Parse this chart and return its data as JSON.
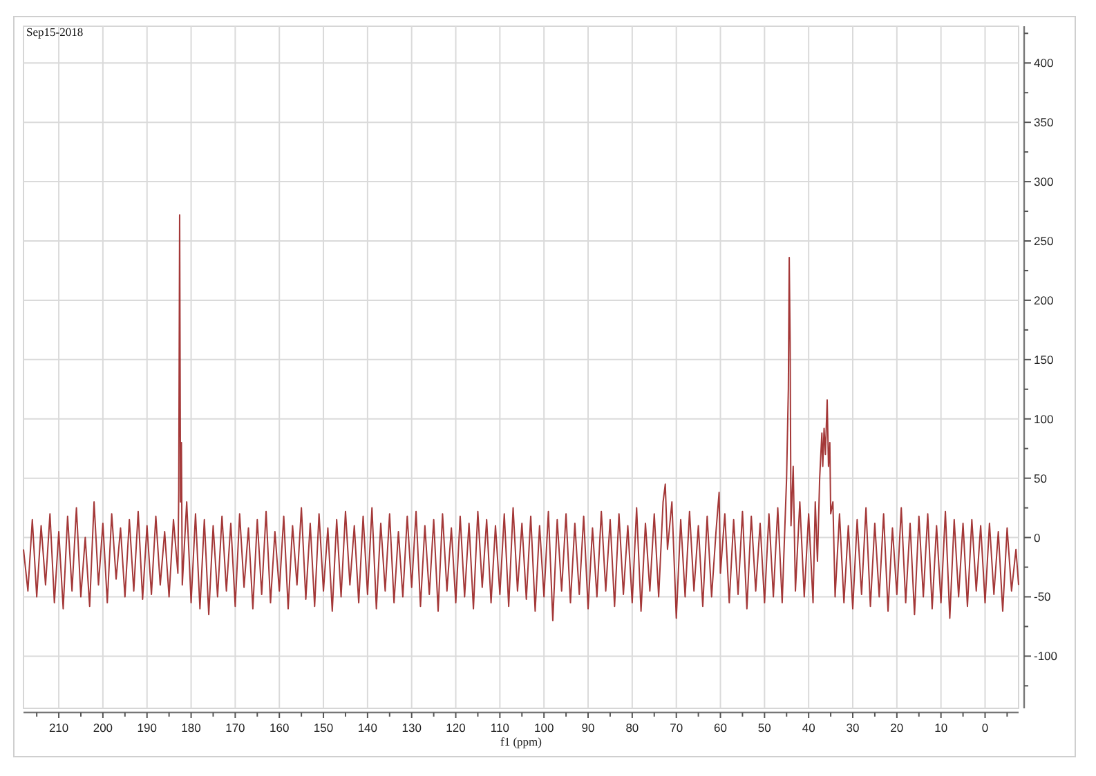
{
  "chart_data": {
    "type": "line",
    "title": "Sep15-2018",
    "xlabel": "f1 (ppm)",
    "color": "#9a2222",
    "grid": true,
    "xlim": [
      218,
      -7.6
    ],
    "ylim": [
      -144,
      431
    ],
    "xticks": [
      {
        "value": 215,
        "label": null
      },
      210,
      {
        "value": 205,
        "label": null
      },
      200,
      {
        "value": 195,
        "label": null
      },
      190,
      {
        "value": 185,
        "label": null
      },
      180,
      {
        "value": 175,
        "label": null
      },
      170,
      {
        "value": 165,
        "label": null
      },
      160,
      {
        "value": 155,
        "label": null
      },
      150,
      {
        "value": 145,
        "label": null
      },
      140,
      {
        "value": 135,
        "label": null
      },
      130,
      {
        "value": 125,
        "label": null
      },
      120,
      {
        "value": 115,
        "label": null
      },
      110,
      {
        "value": 105,
        "label": null
      },
      100,
      {
        "value": 95,
        "label": null
      },
      90,
      {
        "value": 85,
        "label": null
      },
      80,
      {
        "value": 75,
        "label": null
      },
      70,
      {
        "value": 65,
        "label": null
      },
      60,
      {
        "value": 55,
        "label": null
      },
      50,
      {
        "value": 45,
        "label": null
      },
      40,
      {
        "value": 35,
        "label": null
      },
      30,
      {
        "value": 25,
        "label": null
      },
      20,
      {
        "value": 15,
        "label": null
      },
      10,
      {
        "value": 5,
        "label": null
      },
      0,
      {
        "value": -5,
        "label": null
      }
    ],
    "yticks": [
      {
        "value": -125,
        "label": null
      },
      -100,
      {
        "value": -75,
        "label": null
      },
      -50,
      {
        "value": -25,
        "label": null
      },
      0,
      {
        "value": 25,
        "label": null
      },
      50,
      {
        "value": 75,
        "label": null
      },
      100,
      {
        "value": 125,
        "label": null
      },
      150,
      {
        "value": 175,
        "label": null
      },
      200,
      {
        "value": 225,
        "label": null
      },
      250,
      {
        "value": 275,
        "label": null
      },
      300,
      {
        "value": 325,
        "label": null
      },
      350,
      {
        "value": 375,
        "label": null
      },
      400,
      {
        "value": 425,
        "label": null
      }
    ],
    "x": [
      218,
      217,
      216,
      215,
      214,
      213,
      212,
      211,
      210,
      209,
      208,
      207,
      206,
      205,
      204,
      203,
      202,
      201,
      200,
      199,
      198,
      197,
      196,
      195,
      194,
      193,
      192,
      191,
      190,
      189,
      188,
      187,
      186,
      185,
      184,
      183,
      182.8,
      182.6,
      182.4,
      182.2,
      182,
      181,
      180,
      179,
      178,
      177,
      176,
      175,
      174,
      173,
      172,
      171,
      170,
      169,
      168,
      167,
      166,
      165,
      164,
      163,
      162,
      161,
      160,
      159,
      158,
      157,
      156,
      155,
      154,
      153,
      152,
      151,
      150,
      149,
      148,
      147,
      146,
      145,
      144,
      143,
      142,
      141,
      140,
      139,
      138,
      137,
      136,
      135,
      134,
      133,
      132,
      131,
      130,
      129,
      128,
      127,
      126,
      125,
      124,
      123,
      122,
      121,
      120,
      119,
      118,
      117,
      116,
      115,
      114,
      113,
      112,
      111,
      110,
      109,
      108,
      107,
      106,
      105,
      104,
      103,
      102,
      101,
      100,
      99,
      98,
      97,
      96,
      95,
      94,
      93,
      92,
      91,
      90,
      89,
      88,
      87,
      86,
      85,
      84,
      83,
      82,
      81,
      80,
      79,
      78,
      77,
      76,
      75,
      74,
      73,
      72.5,
      72,
      71,
      70,
      69,
      68,
      67,
      66,
      65,
      64,
      63,
      62,
      61,
      60.3,
      60,
      59,
      58,
      57,
      56,
      55,
      54,
      53,
      52,
      51,
      50,
      49,
      48,
      47,
      46,
      45,
      44.6,
      44.4,
      44.2,
      44,
      43.5,
      43,
      42,
      41,
      40,
      39,
      38.5,
      38,
      37.5,
      37,
      36.8,
      36.5,
      36.2,
      35.8,
      35.5,
      35.2,
      35,
      34.5,
      34,
      33,
      32,
      31,
      30,
      29,
      28,
      27,
      26,
      25,
      24,
      23,
      22,
      21,
      20,
      19,
      18,
      17,
      16,
      15,
      14,
      13,
      12,
      11,
      10,
      9,
      8,
      7,
      6,
      5,
      4,
      3,
      2,
      1,
      0,
      -1,
      -2,
      -3,
      -4,
      -5,
      -6,
      -7,
      -7.6
    ],
    "values": [
      -10,
      -45,
      15,
      -50,
      10,
      -40,
      20,
      -55,
      5,
      -60,
      18,
      -45,
      25,
      -50,
      0,
      -58,
      30,
      -40,
      12,
      -55,
      20,
      -35,
      8,
      -50,
      15,
      -45,
      22,
      -52,
      10,
      -48,
      18,
      -40,
      5,
      -50,
      15,
      -30,
      40,
      272,
      30,
      80,
      -40,
      30,
      -55,
      20,
      -60,
      15,
      -65,
      10,
      -50,
      18,
      -45,
      12,
      -58,
      20,
      -42,
      8,
      -60,
      15,
      -48,
      22,
      -55,
      5,
      -45,
      18,
      -60,
      10,
      -40,
      25,
      -52,
      12,
      -58,
      20,
      -45,
      8,
      -62,
      15,
      -50,
      22,
      -40,
      10,
      -55,
      18,
      -48,
      25,
      -60,
      12,
      -45,
      20,
      -55,
      5,
      -50,
      18,
      -42,
      22,
      -58,
      10,
      -48,
      15,
      -62,
      20,
      -45,
      8,
      -55,
      18,
      -50,
      12,
      -60,
      22,
      -42,
      15,
      -55,
      10,
      -48,
      20,
      -58,
      25,
      -45,
      12,
      -52,
      18,
      -62,
      10,
      -50,
      22,
      -70,
      15,
      -45,
      20,
      -55,
      12,
      -48,
      18,
      -60,
      8,
      -50,
      22,
      -45,
      15,
      -58,
      20,
      -48,
      10,
      -55,
      25,
      -62,
      12,
      -45,
      20,
      -50,
      30,
      45,
      -10,
      30,
      -68,
      15,
      -50,
      22,
      -45,
      10,
      -58,
      18,
      -50,
      5,
      38,
      -30,
      20,
      -55,
      15,
      -48,
      22,
      -60,
      18,
      -45,
      12,
      -55,
      20,
      -50,
      25,
      -55,
      50,
      125,
      236,
      165,
      10,
      60,
      -45,
      30,
      -50,
      20,
      -55,
      30,
      -20,
      50,
      88,
      60,
      92,
      70,
      116,
      60,
      80,
      20,
      30,
      -50,
      20,
      -55,
      10,
      -60,
      15,
      -48,
      25,
      -58,
      12,
      -50,
      20,
      -62,
      8,
      -48,
      25,
      -55,
      12,
      -65,
      18,
      -50,
      20,
      -60,
      10,
      -55,
      22,
      -68,
      15,
      -50,
      12,
      -58,
      15,
      -45,
      10,
      -55,
      12,
      -48,
      5,
      -62,
      8,
      -45,
      -10,
      -40
    ]
  }
}
